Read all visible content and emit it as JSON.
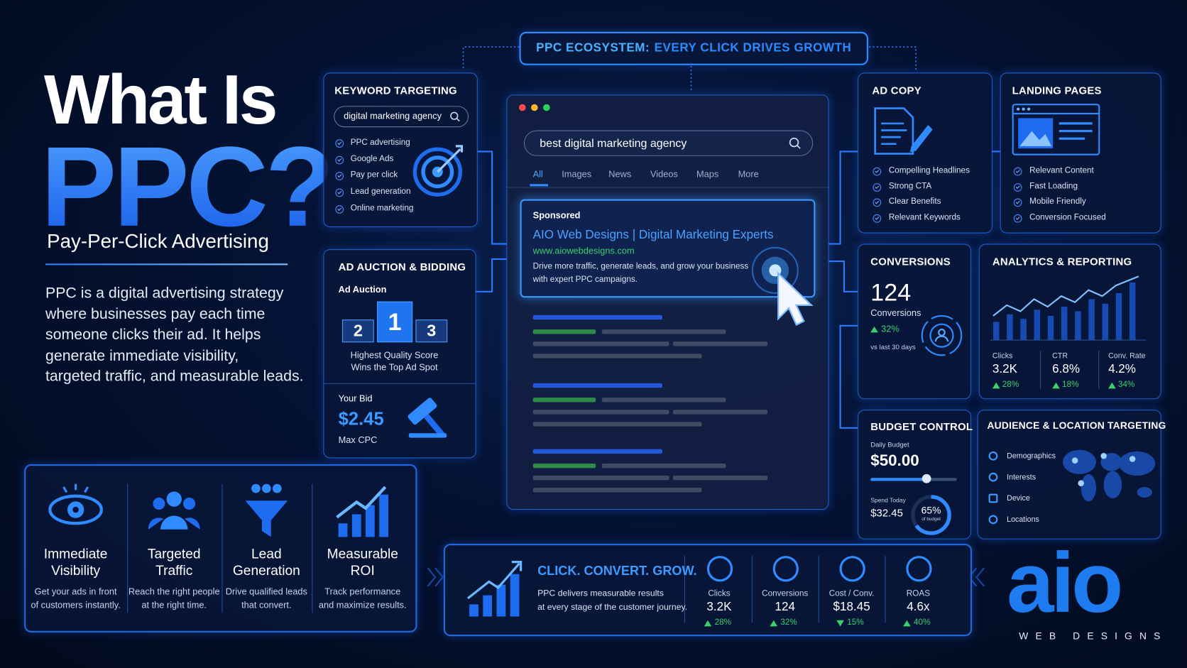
{
  "header": {
    "title_line1": "What Is",
    "title_line2": "PPC?",
    "subtitle": "Pay-Per-Click Advertising",
    "description": [
      "PPC is a digital advertising strategy",
      "where businesses pay each time",
      "someone clicks their ad.  It helps",
      "generate immediate visibility,",
      "targeted traffic, and measurable leads."
    ]
  },
  "banner": {
    "lead": "PPC ECOSYSTEM:",
    "rest": "EVERY CLICK DRIVES GROWTH"
  },
  "keyword_targeting": {
    "title": "KEYWORD TARGETING",
    "search": "digital marketing agency",
    "items": [
      "PPC advertising",
      "Google Ads",
      "Pay per click",
      "Lead generation",
      "Online marketing"
    ]
  },
  "ad_auction": {
    "title": "AD AUCTION & BIDDING",
    "subtitle": "Ad Auction",
    "ranks": [
      "2",
      "1",
      "3"
    ],
    "caption": [
      "Highest Quality Score",
      "Wins the Top Ad Spot"
    ],
    "bid_label": "Your Bid",
    "bid": "$2.45",
    "bid_note": "Max CPC"
  },
  "search_page": {
    "query": "best digital marketing agency",
    "tabs": [
      "All",
      "Images",
      "News",
      "Videos",
      "Maps",
      "More"
    ],
    "ad": {
      "label": "Sponsored",
      "title": "AIO Web Designs | Digital Marketing Experts",
      "url": "www.aiowebdesigns.com",
      "description": [
        "Drive more traffic, generate leads, and grow your business",
        "with expert PPC campaigns."
      ]
    }
  },
  "ad_copy": {
    "title": "AD COPY",
    "items": [
      "Compelling Headlines",
      "Strong CTA",
      "Clear Benefits",
      "Relevant Keywords"
    ]
  },
  "landing_pages": {
    "title": "LANDING PAGES",
    "items": [
      "Relevant Content",
      "Fast Loading",
      "Mobile Friendly",
      "Conversion Focused"
    ]
  },
  "conversions": {
    "title": "CONVERSIONS",
    "value": "124",
    "label": "Conversions",
    "change": "32%",
    "direction": "up",
    "period": "vs last 30 days"
  },
  "analytics": {
    "title": "ANALYTICS & REPORTING",
    "metrics": [
      {
        "label": "Clicks",
        "value": "3.2K",
        "change": "28%",
        "direction": "up"
      },
      {
        "label": "CTR",
        "value": "6.8%",
        "change": "18%",
        "direction": "up"
      },
      {
        "label": "Conv. Rate",
        "value": "4.2%",
        "change": "34%",
        "direction": "up"
      }
    ]
  },
  "budget": {
    "title": "BUDGET CONTROL",
    "daily_label": "Daily Budget",
    "daily": "$50.00",
    "spend_label": "Spend Today",
    "spend": "$32.45",
    "percent": "65%",
    "percent_note": "of budget"
  },
  "audience": {
    "title": "AUDIENCE & LOCATION TARGETING",
    "items": [
      "Demographics",
      "Interests",
      "Device",
      "Locations"
    ]
  },
  "benefits": [
    {
      "title": [
        "Immediate",
        "Visibility"
      ],
      "description": [
        "Get your ads in front",
        "of customers instantly."
      ]
    },
    {
      "title": [
        "Targeted",
        "Traffic"
      ],
      "description": [
        "Reach the right people",
        "at the right time."
      ]
    },
    {
      "title": [
        "Lead",
        "Generation"
      ],
      "description": [
        "Drive qualified leads",
        "that convert."
      ]
    },
    {
      "title": [
        "Measurable",
        "ROI"
      ],
      "description": [
        "Track performance",
        "and maximize results."
      ]
    }
  ],
  "summary": {
    "headline": "CLICK. CONVERT. GROW.",
    "text": [
      "PPC delivers measurable results",
      "at every stage of the customer journey."
    ],
    "metrics": [
      {
        "label": "Clicks",
        "value": "3.2K",
        "change": "28%",
        "direction": "up"
      },
      {
        "label": "Conversions",
        "value": "124",
        "change": "32%",
        "direction": "up"
      },
      {
        "label": "Cost / Conv.",
        "value": "$18.45",
        "change": "15%",
        "direction": "down"
      },
      {
        "label": "ROAS",
        "value": "4.6x",
        "change": "40%",
        "direction": "up"
      }
    ]
  },
  "logo": {
    "mark": "aio",
    "tagline": "WEB DESIGNS"
  }
}
